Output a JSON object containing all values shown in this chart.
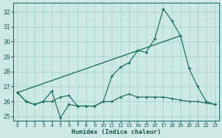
{
  "xlabel": "Humidex (Indice chaleur)",
  "xlim": [
    -0.5,
    23.5
  ],
  "ylim": [
    24.7,
    32.6
  ],
  "yticks": [
    25,
    26,
    27,
    28,
    29,
    30,
    31,
    32
  ],
  "xticks": [
    0,
    1,
    2,
    3,
    4,
    5,
    6,
    7,
    8,
    9,
    10,
    11,
    12,
    13,
    14,
    15,
    16,
    17,
    18,
    19,
    20,
    21,
    22,
    23
  ],
  "background_color": "#cce9e5",
  "grid_color": "#aad4cf",
  "line_color": "#1a6b63",
  "series1_x": [
    0,
    19
  ],
  "series1_y": [
    26.6,
    30.4
  ],
  "series2_x": [
    0,
    1,
    2,
    3,
    4,
    5,
    6,
    7,
    8,
    9,
    10,
    11,
    12,
    13,
    14,
    15,
    16,
    17,
    18,
    19,
    20,
    21,
    22,
    23
  ],
  "series2_y": [
    26.6,
    26.0,
    25.8,
    26.0,
    26.7,
    24.9,
    25.8,
    25.7,
    25.7,
    25.7,
    26.0,
    27.7,
    28.3,
    28.6,
    29.4,
    29.3,
    30.2,
    32.2,
    31.4,
    30.4,
    28.2,
    27.0,
    26.0,
    25.8
  ],
  "series3_x": [
    0,
    1,
    2,
    3,
    4,
    5,
    6,
    7,
    8,
    9,
    10,
    11,
    12,
    13,
    14,
    15,
    16,
    17,
    18,
    19,
    20,
    21,
    22,
    23
  ],
  "series3_y": [
    26.6,
    26.0,
    25.8,
    26.0,
    26.0,
    26.3,
    26.4,
    25.7,
    25.7,
    25.7,
    26.0,
    26.0,
    26.3,
    26.5,
    26.3,
    26.3,
    26.3,
    26.3,
    26.2,
    26.1,
    26.0,
    26.0,
    25.9,
    25.8
  ]
}
